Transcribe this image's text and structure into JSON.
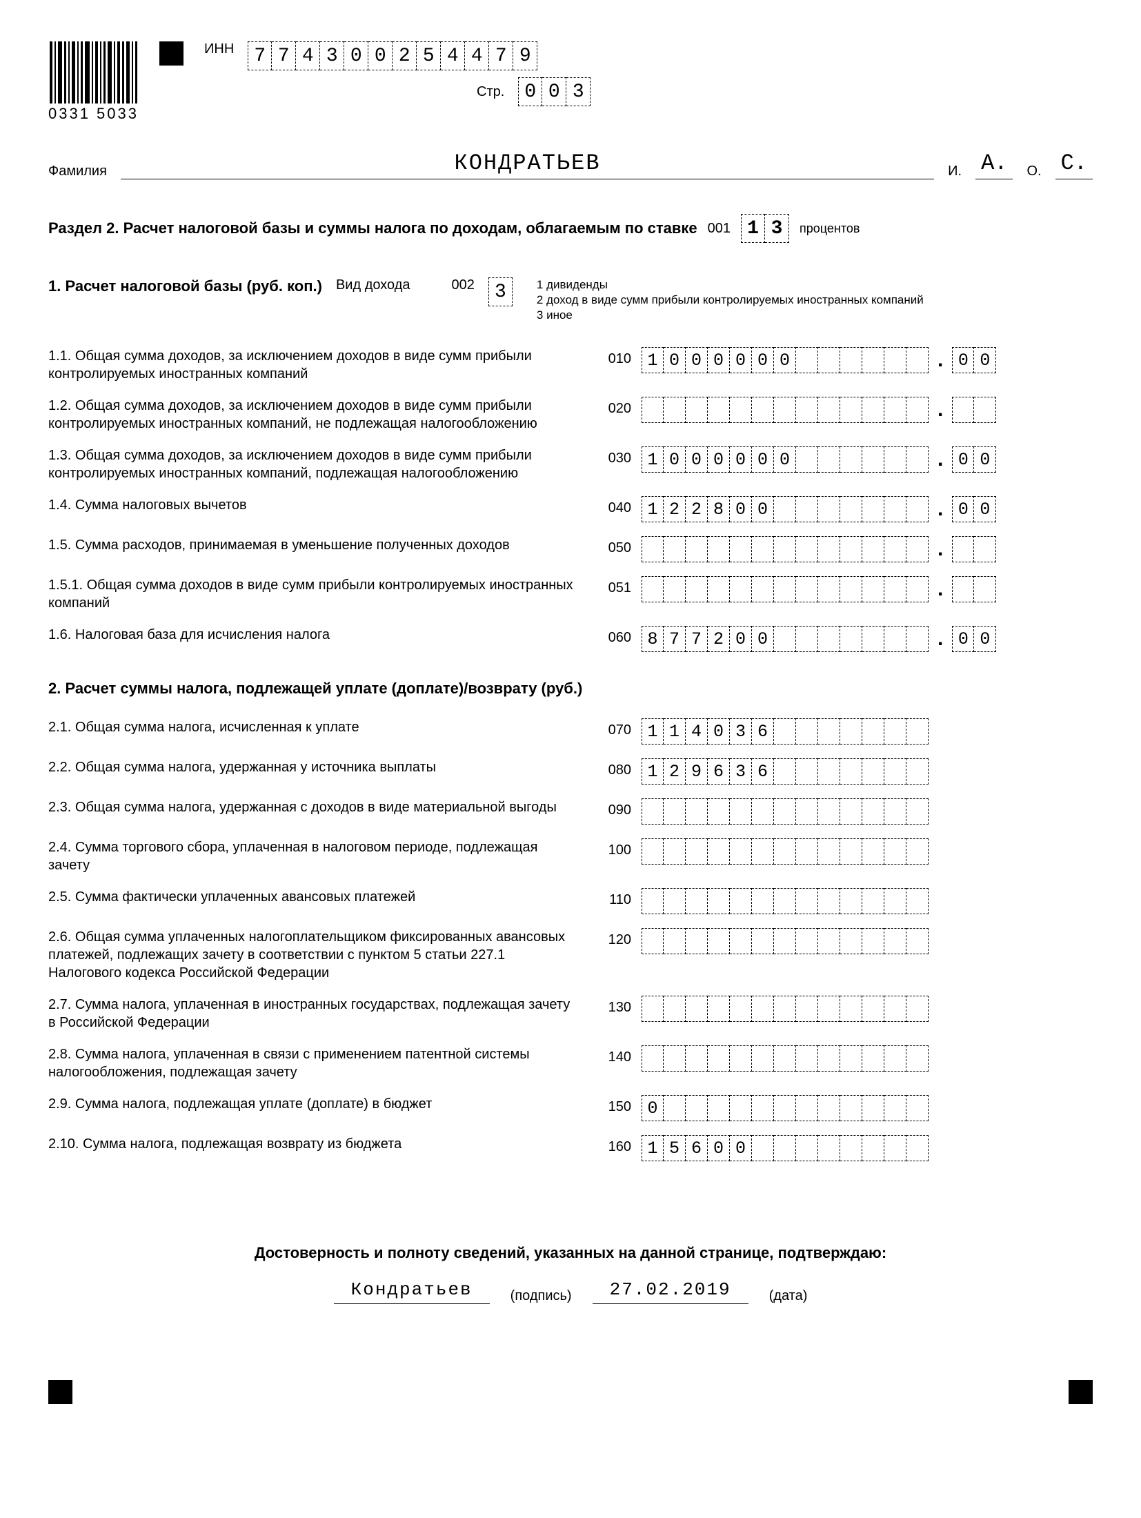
{
  "header": {
    "inn_label": "ИНН",
    "inn": "774300254479",
    "page_label": "Стр.",
    "page": "003",
    "barcode_label": "0331 5033",
    "surname_label": "Фамилия",
    "surname": "КОНДРАТЬЕВ",
    "i_label": "И.",
    "i_value": "А.",
    "o_label": "О.",
    "o_value": "С."
  },
  "section": {
    "title": "Раздел 2. Расчет налоговой базы и суммы налога по доходам, облагаемым по ставке",
    "rate_code_label": "001",
    "rate_value": "13",
    "percent_label": "процентов"
  },
  "sub1": {
    "title": "1. Расчет налоговой базы (руб. коп.)",
    "income_type_label": "Вид дохода",
    "income_type_code": "002",
    "income_type_value": "3",
    "legend1": "1  дивиденды",
    "legend2": "2  доход в виде сумм прибыли контролируемых иностранных компаний",
    "legend3": "3  иное"
  },
  "s2title": "2. Расчет суммы налога, подлежащей уплате (доплате)/возврату (руб.)",
  "footer": {
    "title": "Достоверность и полноту сведений, указанных на данной странице, подтверждаю:",
    "signature": "Кондратьев",
    "sig_label": "(подпись)",
    "date": "27.02.2019",
    "date_label": "(дата)"
  },
  "rows_money": [
    {
      "desc": "1.1. Общая сумма доходов, за исключением доходов в виде сумм прибыли контролируемых иностранных компаний",
      "code": "010",
      "int": "1000000",
      "dec": "00"
    },
    {
      "desc": "1.2. Общая сумма доходов, за исключением доходов в виде сумм прибыли контролируемых иностранных компаний, не подлежащая налогообложению",
      "code": "020",
      "int": "",
      "dec": ""
    },
    {
      "desc": "1.3. Общая сумма доходов, за исключением доходов в виде сумм прибыли контролируемых иностранных компаний, подлежащая налогообложению",
      "code": "030",
      "int": "1000000",
      "dec": "00"
    },
    {
      "desc": "1.4. Сумма налоговых вычетов",
      "code": "040",
      "int": "122800",
      "dec": "00"
    },
    {
      "desc": "1.5. Сумма расходов, принимаемая в уменьшение полученных доходов",
      "code": "050",
      "int": "",
      "dec": ""
    },
    {
      "desc": "1.5.1. Общая сумма доходов в виде сумм прибыли контролируемых иностранных компаний",
      "code": "051",
      "int": "",
      "dec": ""
    },
    {
      "desc": "1.6. Налоговая база для исчисления налога",
      "code": "060",
      "int": "877200",
      "dec": "00"
    }
  ],
  "rows_int": [
    {
      "desc": "2.1. Общая сумма налога, исчисленная к уплате",
      "code": "070",
      "int": "114036"
    },
    {
      "desc": "2.2. Общая сумма налога, удержанная у источника выплаты",
      "code": "080",
      "int": "129636"
    },
    {
      "desc": "2.3. Общая сумма налога, удержанная с доходов в виде материальной выгоды",
      "code": "090",
      "int": ""
    },
    {
      "desc": "2.4. Сумма торгового сбора, уплаченная в налоговом периоде, подлежащая зачету",
      "code": "100",
      "int": ""
    },
    {
      "desc": "2.5. Сумма фактически уплаченных авансовых платежей",
      "code": "110",
      "int": ""
    },
    {
      "desc": "2.6. Общая сумма уплаченных налогоплательщиком фиксированных авансовых платежей, подлежащих зачету в соответствии с пунктом 5 статьи 227.1 Налогового кодекса Российской Федерации",
      "code": "120",
      "int": ""
    },
    {
      "desc": "2.7. Сумма налога, уплаченная в иностранных государствах, подлежащая зачету в Российской Федерации",
      "code": "130",
      "int": ""
    },
    {
      "desc": "2.8. Сумма налога, уплаченная в связи с применением патентной системы налогообложения, подлежащая зачету",
      "code": "140",
      "int": ""
    },
    {
      "desc": "2.9. Сумма налога, подлежащая уплате (доплате) в бюджет",
      "code": "150",
      "int": "0"
    },
    {
      "desc": "2.10. Сумма налога, подлежащая возврату из бюджета",
      "code": "160",
      "int": "15600"
    }
  ],
  "style": {
    "int_cells": 13,
    "dec_cells": 2,
    "barcode_widths": [
      4,
      2,
      6,
      3,
      2,
      5,
      2,
      3,
      7,
      2,
      4,
      2,
      3,
      6,
      2,
      4,
      3,
      5,
      2,
      3
    ],
    "colors": {
      "bg": "#ffffff",
      "fg": "#000000"
    }
  }
}
